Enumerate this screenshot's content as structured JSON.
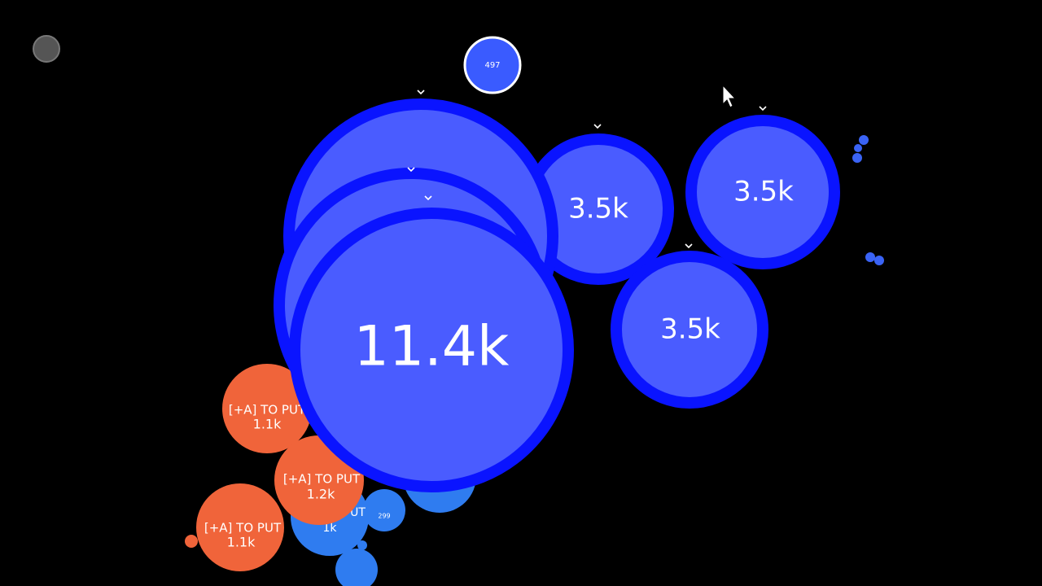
{
  "cells": [
    {
      "mass": "497"
    },
    {
      "mass": "3.5k"
    },
    {
      "mass": "3.5k"
    },
    {
      "mass": "3.5k"
    },
    {
      "mass": "11.4k"
    },
    {
      "name": "[+A] TO PUT",
      "mass": "1.1k"
    },
    {
      "name": "[+A] TO PUT",
      "mass": "1.2k"
    },
    {
      "name": "[+A] TO PUT",
      "mass": "1.1k"
    },
    {
      "name": "[+A] TO PUT",
      "mass": "1k"
    },
    {
      "mass": "299"
    }
  ]
}
